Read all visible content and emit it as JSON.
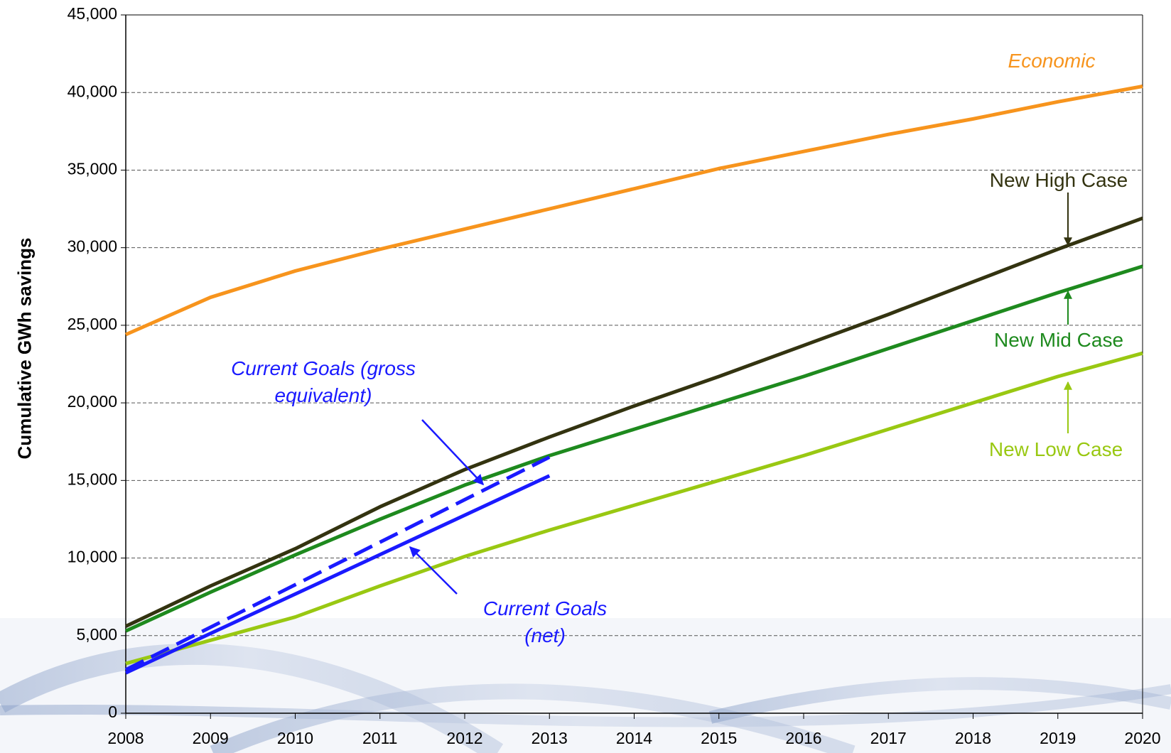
{
  "chart_data": {
    "type": "line",
    "y_label": "Cumulative GWh savings",
    "x": [
      2008,
      2009,
      2010,
      2011,
      2012,
      2013,
      2014,
      2015,
      2016,
      2017,
      2018,
      2019,
      2020
    ],
    "xlim": [
      2008,
      2020
    ],
    "xticks": [
      2008,
      2009,
      2010,
      2011,
      2012,
      2013,
      2014,
      2015,
      2016,
      2017,
      2018,
      2019,
      2020
    ],
    "ylim": [
      0,
      45000
    ],
    "yticks": [
      0,
      {
        "value": 5000,
        "label": "5,000"
      },
      {
        "value": 10000,
        "label": "10,000"
      },
      {
        "value": 15000,
        "label": "15,000"
      },
      {
        "value": 20000,
        "label": "20,000"
      },
      {
        "value": 25000,
        "label": "25,000"
      },
      {
        "value": 30000,
        "label": "30,000"
      },
      {
        "value": 35000,
        "label": "35,000"
      },
      {
        "value": 40000,
        "label": "40,000"
      },
      {
        "value": 45000,
        "label": "45,000"
      }
    ],
    "grid": true,
    "series": [
      {
        "name": "Economic",
        "color": "#f7941d",
        "values": [
          24400,
          26800,
          28500,
          29900,
          31200,
          32500,
          33800,
          35100,
          36200,
          37300,
          38300,
          39400,
          40400
        ]
      },
      {
        "name": "New High Case",
        "color": "#333310",
        "values": [
          5600,
          8200,
          10600,
          13300,
          15700,
          17800,
          19800,
          21700,
          23700,
          25700,
          27800,
          29900,
          31900
        ]
      },
      {
        "name": "New Mid Case",
        "color": "#1e8a1e",
        "values": [
          5300,
          7800,
          10200,
          12500,
          14700,
          16600,
          18300,
          20000,
          21700,
          23500,
          25300,
          27100,
          28800
        ]
      },
      {
        "name": "New Low Case",
        "color": "#99c812",
        "values": [
          3200,
          4700,
          6200,
          8200,
          10100,
          11800,
          13400,
          15000,
          16600,
          18300,
          20000,
          21700,
          23200
        ]
      },
      {
        "name": "Current Goals (gross equivalent)",
        "color": "#1a1aff",
        "style": "dashed",
        "values": [
          2800,
          5540,
          8280,
          11020,
          13760,
          16500,
          null,
          null,
          null,
          null,
          null,
          null,
          null
        ]
      },
      {
        "name": "Current Goals (net)",
        "color": "#1a1aff",
        "values": [
          2600,
          5140,
          7680,
          10220,
          12760,
          15300,
          null,
          null,
          null,
          null,
          null,
          null,
          null
        ]
      }
    ]
  }
}
